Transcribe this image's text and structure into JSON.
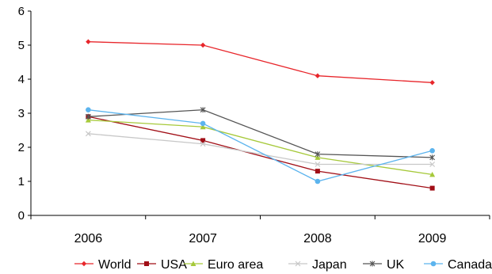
{
  "chart_data": {
    "type": "line",
    "title": "",
    "xlabel": "",
    "ylabel": "",
    "categories": [
      "2006",
      "2007",
      "2008",
      "2009"
    ],
    "ylim": [
      0,
      6
    ],
    "yticks": [
      "0",
      "1",
      "2",
      "3",
      "4",
      "5",
      "6"
    ],
    "grid": false,
    "legend_position": "bottom",
    "series": [
      {
        "name": "World",
        "values": [
          5.1,
          5.0,
          4.1,
          3.9
        ],
        "color": "#e8262b",
        "marker": "diamond"
      },
      {
        "name": "USA",
        "values": [
          2.9,
          2.2,
          1.3,
          0.8
        ],
        "color": "#a10e16",
        "marker": "square"
      },
      {
        "name": "Euro area",
        "values": [
          2.8,
          2.6,
          1.7,
          1.2
        ],
        "color": "#a6c93a",
        "marker": "triangle"
      },
      {
        "name": "Japan",
        "values": [
          2.4,
          2.1,
          1.5,
          1.5
        ],
        "color": "#c8c8c8",
        "marker": "x"
      },
      {
        "name": "UK",
        "values": [
          2.9,
          3.1,
          1.8,
          1.7
        ],
        "color": "#555555",
        "marker": "star"
      },
      {
        "name": "Canada",
        "values": [
          3.1,
          2.7,
          1.0,
          1.9
        ],
        "color": "#5cb4ee",
        "marker": "circle"
      }
    ]
  }
}
